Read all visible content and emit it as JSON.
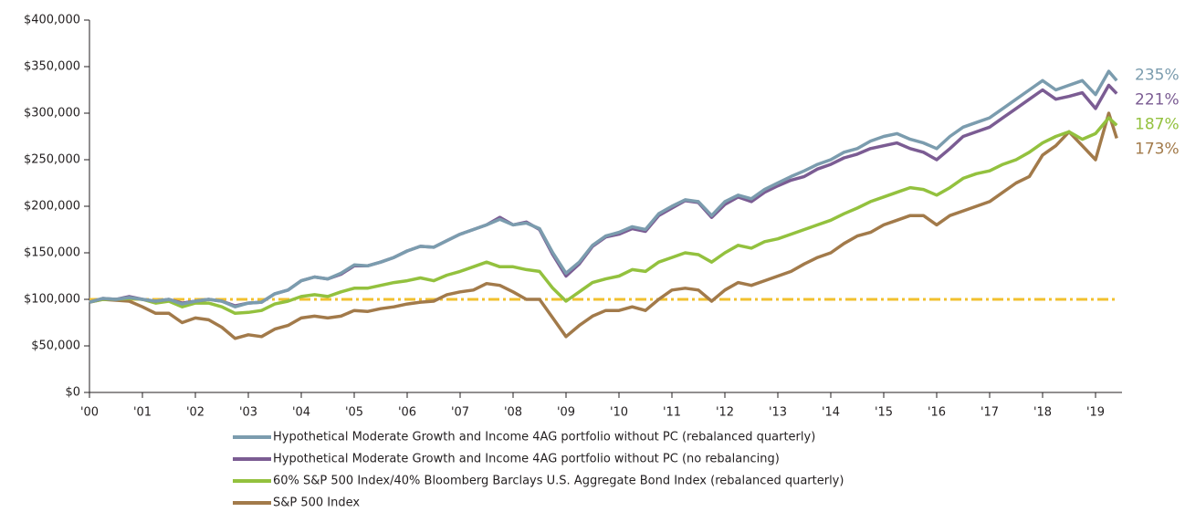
{
  "chart_data": {
    "type": "line",
    "x": [
      2000,
      2000.25,
      2000.5,
      2000.75,
      2001,
      2001.25,
      2001.5,
      2001.75,
      2002,
      2002.25,
      2002.5,
      2002.75,
      2003,
      2003.25,
      2003.5,
      2003.75,
      2004,
      2004.25,
      2004.5,
      2004.75,
      2005,
      2005.25,
      2005.5,
      2005.75,
      2006,
      2006.25,
      2006.5,
      2006.75,
      2007,
      2007.25,
      2007.5,
      2007.75,
      2008,
      2008.25,
      2008.5,
      2008.75,
      2009,
      2009.25,
      2009.5,
      2009.75,
      2010,
      2010.25,
      2010.5,
      2010.75,
      2011,
      2011.25,
      2011.5,
      2011.75,
      2012,
      2012.25,
      2012.5,
      2012.75,
      2013,
      2013.25,
      2013.5,
      2013.75,
      2014,
      2014.25,
      2014.5,
      2014.75,
      2015,
      2015.25,
      2015.5,
      2015.75,
      2016,
      2016.25,
      2016.5,
      2016.75,
      2017,
      2017.25,
      2017.5,
      2017.75,
      2018,
      2018.25,
      2018.5,
      2018.75,
      2019,
      2019.25,
      2019.4
    ],
    "series": [
      {
        "name": "Hypothetical Moderate Growth and Income 4AG portfolio without PC (rebalanced quarterly)",
        "color": "#7b9cae",
        "end_label": "235%",
        "values": [
          97000,
          101000,
          100000,
          102000,
          100000,
          98000,
          100000,
          95000,
          98000,
          100000,
          98000,
          92000,
          96000,
          97000,
          106000,
          110000,
          120000,
          124000,
          122000,
          128000,
          137000,
          136000,
          140000,
          145000,
          152000,
          157000,
          156000,
          163000,
          170000,
          175000,
          180000,
          186000,
          180000,
          182000,
          176000,
          150000,
          128000,
          140000,
          158000,
          168000,
          172000,
          178000,
          175000,
          192000,
          200000,
          207000,
          205000,
          190000,
          205000,
          212000,
          208000,
          218000,
          225000,
          232000,
          238000,
          245000,
          250000,
          258000,
          262000,
          270000,
          275000,
          278000,
          272000,
          268000,
          262000,
          275000,
          285000,
          290000,
          295000,
          305000,
          315000,
          325000,
          335000,
          325000,
          330000,
          335000,
          320000,
          345000,
          335000
        ]
      },
      {
        "name": "Hypothetical Moderate Growth and Income 4AG portfolio without PC (no rebalancing)",
        "color": "#7b5c93",
        "end_label": "221%",
        "values": [
          97000,
          101000,
          100000,
          103000,
          100000,
          98000,
          100000,
          96000,
          98000,
          100000,
          98000,
          93000,
          96000,
          97000,
          106000,
          110000,
          120000,
          124000,
          122000,
          127000,
          136000,
          136000,
          140000,
          145000,
          152000,
          157000,
          156000,
          163000,
          170000,
          175000,
          180000,
          188000,
          180000,
          183000,
          175000,
          148000,
          125000,
          138000,
          157000,
          167000,
          170000,
          176000,
          173000,
          190000,
          198000,
          206000,
          204000,
          188000,
          202000,
          210000,
          205000,
          215000,
          222000,
          228000,
          232000,
          240000,
          245000,
          252000,
          256000,
          262000,
          265000,
          268000,
          262000,
          258000,
          250000,
          262000,
          275000,
          280000,
          285000,
          295000,
          305000,
          315000,
          325000,
          315000,
          318000,
          322000,
          305000,
          330000,
          321000
        ]
      },
      {
        "name": "60% S&P 500 Index/40% Bloomberg Barclays U.S. Aggregate Bond Index (rebalanced quarterly)",
        "color": "#93c13e",
        "end_label": "187%",
        "values": [
          97000,
          100000,
          100000,
          101000,
          100000,
          96000,
          98000,
          92000,
          96000,
          96000,
          92000,
          85000,
          86000,
          88000,
          95000,
          98000,
          103000,
          105000,
          103000,
          108000,
          112000,
          112000,
          115000,
          118000,
          120000,
          123000,
          120000,
          126000,
          130000,
          135000,
          140000,
          135000,
          135000,
          132000,
          130000,
          112000,
          98000,
          108000,
          118000,
          122000,
          125000,
          132000,
          130000,
          140000,
          145000,
          150000,
          148000,
          140000,
          150000,
          158000,
          155000,
          162000,
          165000,
          170000,
          175000,
          180000,
          185000,
          192000,
          198000,
          205000,
          210000,
          215000,
          220000,
          218000,
          212000,
          220000,
          230000,
          235000,
          238000,
          245000,
          250000,
          258000,
          268000,
          275000,
          280000,
          272000,
          278000,
          295000,
          287000
        ]
      },
      {
        "name": "S&P 500 Index",
        "color": "#a27a4a",
        "end_label": "173%",
        "values": [
          97000,
          100000,
          99000,
          98000,
          92000,
          85000,
          85000,
          75000,
          80000,
          78000,
          70000,
          58000,
          62000,
          60000,
          68000,
          72000,
          80000,
          82000,
          80000,
          82000,
          88000,
          87000,
          90000,
          92000,
          95000,
          97000,
          98000,
          105000,
          108000,
          110000,
          117000,
          115000,
          108000,
          100000,
          100000,
          80000,
          60000,
          72000,
          82000,
          88000,
          88000,
          92000,
          88000,
          100000,
          110000,
          112000,
          110000,
          98000,
          110000,
          118000,
          115000,
          120000,
          125000,
          130000,
          138000,
          145000,
          150000,
          160000,
          168000,
          172000,
          180000,
          185000,
          190000,
          190000,
          180000,
          190000,
          195000,
          200000,
          205000,
          215000,
          225000,
          232000,
          255000,
          265000,
          280000,
          265000,
          250000,
          300000,
          273000
        ]
      }
    ],
    "reference_line": {
      "value": 100000,
      "color": "#f2c12e"
    },
    "xlim": [
      2000,
      2019.5
    ],
    "xticks": [
      {
        "value": 2000,
        "label": "'00"
      },
      {
        "value": 2001,
        "label": "'01"
      },
      {
        "value": 2002,
        "label": "'02"
      },
      {
        "value": 2003,
        "label": "'03"
      },
      {
        "value": 2004,
        "label": "'04"
      },
      {
        "value": 2005,
        "label": "'05"
      },
      {
        "value": 2006,
        "label": "'06"
      },
      {
        "value": 2007,
        "label": "'07"
      },
      {
        "value": 2008,
        "label": "'08"
      },
      {
        "value": 2009,
        "label": "'09"
      },
      {
        "value": 2010,
        "label": "'10"
      },
      {
        "value": 2011,
        "label": "'11"
      },
      {
        "value": 2012,
        "label": "'12"
      },
      {
        "value": 2013,
        "label": "'13"
      },
      {
        "value": 2014,
        "label": "'14"
      },
      {
        "value": 2015,
        "label": "'15"
      },
      {
        "value": 2016,
        "label": "'16"
      },
      {
        "value": 2017,
        "label": "'17"
      },
      {
        "value": 2018,
        "label": "'18"
      },
      {
        "value": 2019,
        "label": "'19"
      }
    ],
    "ylim": [
      0,
      400000
    ],
    "yticks": [
      {
        "value": 0,
        "label": "$0"
      },
      {
        "value": 50000,
        "label": "$50,000"
      },
      {
        "value": 100000,
        "label": "$100,000"
      },
      {
        "value": 150000,
        "label": "$150,000"
      },
      {
        "value": 200000,
        "label": "$200,000"
      },
      {
        "value": 250000,
        "label": "$250,000"
      },
      {
        "value": 300000,
        "label": "$300,000"
      },
      {
        "value": 350000,
        "label": "$350,000"
      },
      {
        "value": 400000,
        "label": "$400,000"
      }
    ]
  }
}
